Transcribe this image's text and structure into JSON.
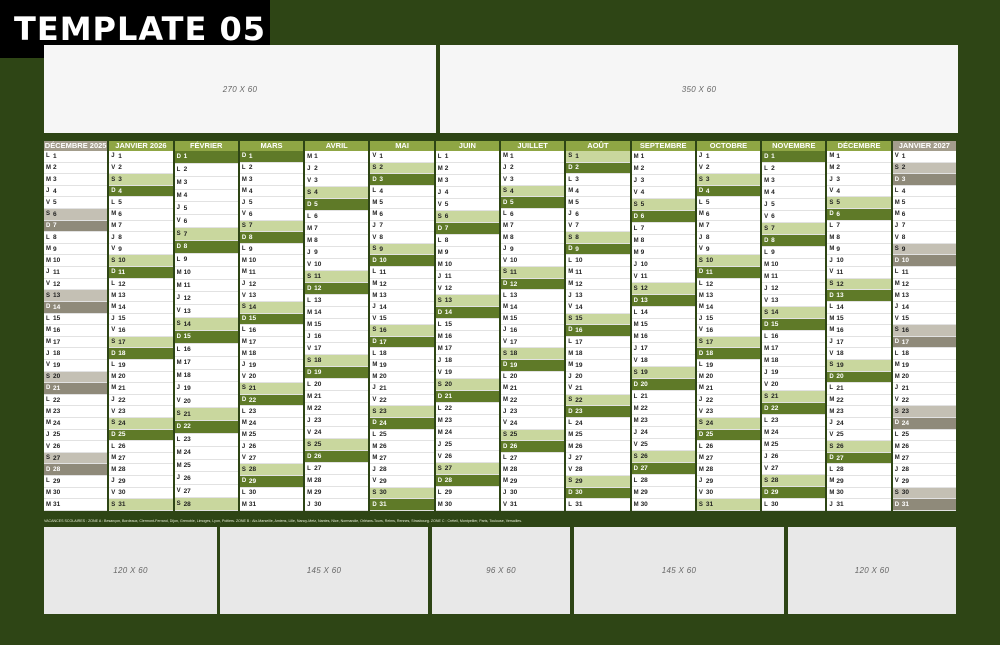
{
  "template_label": "TEMPLATE 05",
  "ads": {
    "top": [
      {
        "label": "270 X 60"
      },
      {
        "label": "350 X 60"
      }
    ],
    "bottom": [
      {
        "label": "120 X 60"
      },
      {
        "label": "145 X 60"
      },
      {
        "label": "96 X 60"
      },
      {
        "label": "145 X 60"
      },
      {
        "label": "120 X 60"
      }
    ]
  },
  "months": [
    {
      "name": "DÉCEMBRE 2025",
      "first_dow": 0,
      "days": 31,
      "style": "gray"
    },
    {
      "name": "JANVIER 2026",
      "first_dow": 3,
      "days": 31,
      "style": "green"
    },
    {
      "name": "FÉVRIER",
      "first_dow": 6,
      "days": 28,
      "style": "green"
    },
    {
      "name": "MARS",
      "first_dow": 6,
      "days": 31,
      "style": "green"
    },
    {
      "name": "AVRIL",
      "first_dow": 2,
      "days": 30,
      "style": "green"
    },
    {
      "name": "MAI",
      "first_dow": 4,
      "days": 31,
      "style": "green"
    },
    {
      "name": "JUIN",
      "first_dow": 0,
      "days": 30,
      "style": "green"
    },
    {
      "name": "JUILLET",
      "first_dow": 2,
      "days": 31,
      "style": "green"
    },
    {
      "name": "AOÛT",
      "first_dow": 5,
      "days": 31,
      "style": "green"
    },
    {
      "name": "SEPTEMBRE",
      "first_dow": 1,
      "days": 30,
      "style": "green"
    },
    {
      "name": "OCTOBRE",
      "first_dow": 3,
      "days": 31,
      "style": "green"
    },
    {
      "name": "NOVEMBRE",
      "first_dow": 6,
      "days": 30,
      "style": "green"
    },
    {
      "name": "DÉCEMBRE",
      "first_dow": 1,
      "days": 31,
      "style": "green"
    },
    {
      "name": "JANVIER 2027",
      "first_dow": 4,
      "days": 31,
      "style": "gray"
    }
  ],
  "weekday_letters": [
    "L",
    "M",
    "M",
    "J",
    "V",
    "S",
    "D"
  ],
  "footer_text": "VACANCES SCOLAIRES : ZONE A : Besançon, Bordeaux, Clermont-Ferrand, Dijon, Grenoble, Limoges, Lyon, Poitiers. ZONE B : Aix-Marseille, Amiens, Lille, Nancy-Metz, Nantes, Nice, Normandie, Orléans-Tours, Reims, Rennes, Strasbourg. ZONE C : Créteil, Montpellier, Paris, Toulouse, Versailles."
}
